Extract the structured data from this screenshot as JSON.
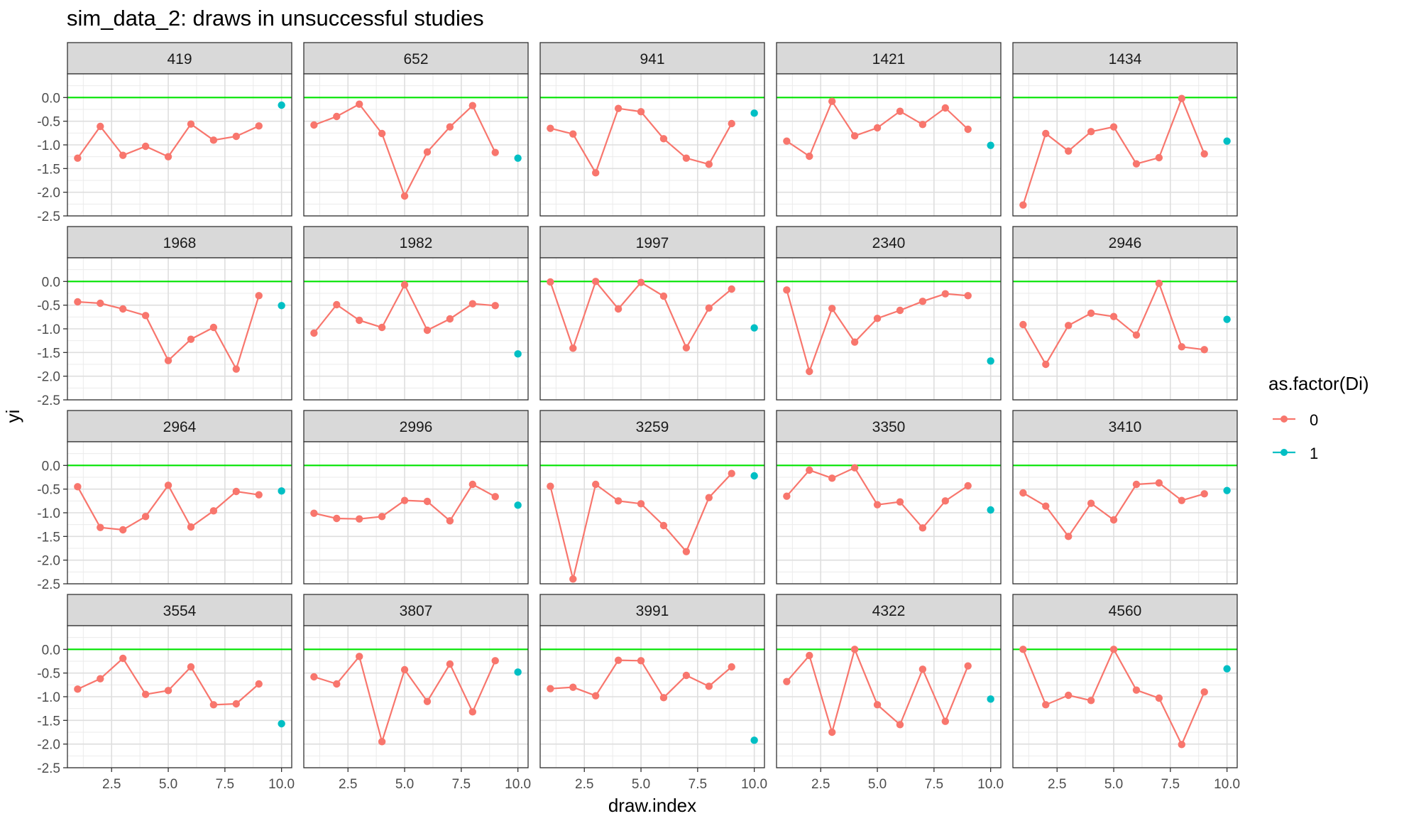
{
  "chart_data": {
    "type": "line",
    "title": "sim_data_2: draws in unsuccessful studies",
    "xlabel": "draw.index",
    "ylabel": "yi",
    "xlim": [
      0.55,
      10.45
    ],
    "ylim": [
      -2.5,
      0.5
    ],
    "x_ticks": [
      2.5,
      5.0,
      7.5,
      10.0
    ],
    "x_tick_labels": [
      "2.5",
      "5.0",
      "7.5",
      "10.0"
    ],
    "y_ticks": [
      0.0,
      -0.5,
      -1.0,
      -1.5,
      -2.0,
      -2.5
    ],
    "y_tick_labels": [
      "0.0",
      "-0.5",
      "-1.0",
      "-1.5",
      "-2.0",
      "-2.5"
    ],
    "reference_line": {
      "y": 0,
      "color": "#00e400"
    },
    "grid": true,
    "legend": {
      "title": "as.factor(Di)",
      "placement": "right",
      "entries": [
        {
          "label": "0",
          "color": "#f8766d"
        },
        {
          "label": "1",
          "color": "#00bfc4"
        }
      ]
    },
    "facets": [
      {
        "label": "419",
        "y0": [
          -1.28,
          -0.61,
          -1.22,
          -1.03,
          -1.25,
          -0.56,
          -0.9,
          -0.82,
          -0.6
        ],
        "y1": -0.16
      },
      {
        "label": "652",
        "y0": [
          -0.58,
          -0.4,
          -0.14,
          -0.76,
          -2.08,
          -1.15,
          -0.62,
          -0.17,
          -1.16
        ],
        "y1": -1.28
      },
      {
        "label": "941",
        "y0": [
          -0.65,
          -0.77,
          -1.59,
          -0.23,
          -0.3,
          -0.87,
          -1.28,
          -1.41,
          -0.55
        ],
        "y1": -0.33
      },
      {
        "label": "1421",
        "y0": [
          -0.92,
          -1.24,
          -0.08,
          -0.81,
          -0.64,
          -0.29,
          -0.57,
          -0.22,
          -0.67
        ],
        "y1": -1.01
      },
      {
        "label": "1434",
        "y0": [
          -2.27,
          -0.76,
          -1.13,
          -0.72,
          -0.62,
          -1.4,
          -1.27,
          -0.02,
          -1.19
        ],
        "y1": -0.92
      },
      {
        "label": "1968",
        "y0": [
          -0.43,
          -0.46,
          -0.58,
          -0.72,
          -1.67,
          -1.22,
          -0.97,
          -1.85,
          -0.3
        ],
        "y1": -0.51
      },
      {
        "label": "1982",
        "y0": [
          -1.09,
          -0.49,
          -0.82,
          -0.97,
          -0.07,
          -1.03,
          -0.79,
          -0.47,
          -0.51
        ],
        "y1": -1.53
      },
      {
        "label": "1997",
        "y0": [
          -0.01,
          -1.41,
          0.0,
          -0.58,
          -0.02,
          -0.31,
          -1.4,
          -0.56,
          -0.16
        ],
        "y1": -0.98
      },
      {
        "label": "2340",
        "y0": [
          -0.18,
          -1.9,
          -0.57,
          -1.28,
          -0.78,
          -0.61,
          -0.42,
          -0.26,
          -0.3
        ],
        "y1": -1.68
      },
      {
        "label": "2946",
        "y0": [
          -0.91,
          -1.75,
          -0.93,
          -0.67,
          -0.74,
          -1.13,
          -0.04,
          -1.38,
          -1.44
        ],
        "y1": -0.8
      },
      {
        "label": "2964",
        "y0": [
          -0.45,
          -1.31,
          -1.36,
          -1.08,
          -0.42,
          -1.3,
          -0.96,
          -0.55,
          -0.62
        ],
        "y1": -0.54
      },
      {
        "label": "2996",
        "y0": [
          -1.01,
          -1.12,
          -1.13,
          -1.08,
          -0.74,
          -0.76,
          -1.17,
          -0.4,
          -0.66
        ],
        "y1": -0.84
      },
      {
        "label": "3259",
        "y0": [
          -0.44,
          -2.4,
          -0.4,
          -0.75,
          -0.81,
          -1.27,
          -1.82,
          -0.68,
          -0.17
        ],
        "y1": -0.22
      },
      {
        "label": "3350",
        "y0": [
          -0.65,
          -0.1,
          -0.27,
          -0.05,
          -0.83,
          -0.77,
          -1.32,
          -0.75,
          -0.43
        ],
        "y1": -0.94
      },
      {
        "label": "3410",
        "y0": [
          -0.58,
          -0.86,
          -1.5,
          -0.8,
          -1.15,
          -0.4,
          -0.37,
          -0.74,
          -0.6
        ],
        "y1": -0.53
      },
      {
        "label": "3554",
        "y0": [
          -0.84,
          -0.62,
          -0.19,
          -0.95,
          -0.87,
          -0.37,
          -1.17,
          -1.15,
          -0.73
        ],
        "y1": -1.57
      },
      {
        "label": "3807",
        "y0": [
          -0.58,
          -0.73,
          -0.15,
          -1.95,
          -0.43,
          -1.1,
          -0.31,
          -1.32,
          -0.24
        ],
        "y1": -0.48
      },
      {
        "label": "3991",
        "y0": [
          -0.83,
          -0.8,
          -0.98,
          -0.23,
          -0.24,
          -1.02,
          -0.55,
          -0.78,
          -0.37
        ],
        "y1": -1.92
      },
      {
        "label": "4322",
        "y0": [
          -0.68,
          -0.13,
          -1.75,
          0.0,
          -1.17,
          -1.59,
          -0.42,
          -1.52,
          -0.35
        ],
        "y1": -1.05
      },
      {
        "label": "4560",
        "y0": [
          0.0,
          -1.17,
          -0.97,
          -1.08,
          0.0,
          -0.86,
          -1.03,
          -2.01,
          -0.9
        ],
        "y1": -0.41
      }
    ]
  }
}
